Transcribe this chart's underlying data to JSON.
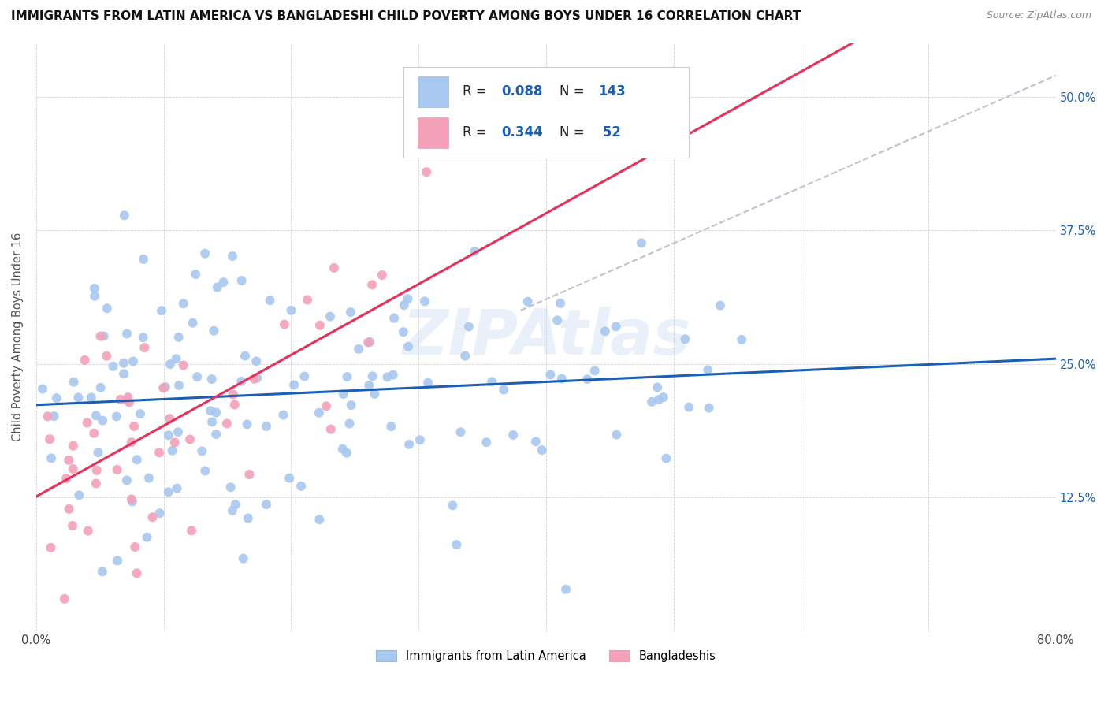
{
  "title": "IMMIGRANTS FROM LATIN AMERICA VS BANGLADESHI CHILD POVERTY AMONG BOYS UNDER 16 CORRELATION CHART",
  "source": "Source: ZipAtlas.com",
  "ylabel": "Child Poverty Among Boys Under 16",
  "xlim": [
    0.0,
    0.8
  ],
  "ylim": [
    0.0,
    0.55
  ],
  "ytick_positions": [
    0.0,
    0.125,
    0.25,
    0.375,
    0.5
  ],
  "ytick_labels": [
    "",
    "12.5%",
    "25.0%",
    "37.5%",
    "50.0%"
  ],
  "legend_label1": "Immigrants from Latin America",
  "legend_label2": "Bangladeshis",
  "R1": "0.088",
  "N1": "143",
  "R2": "0.344",
  "N2": "52",
  "color1": "#a8c8f0",
  "color2": "#f4a0b8",
  "line_color1": "#1a5fb4",
  "line_color2": "#e8305a",
  "dashed_line_color": "#b0b8c8",
  "watermark": "ZIPAtlas",
  "background_color": "#ffffff"
}
